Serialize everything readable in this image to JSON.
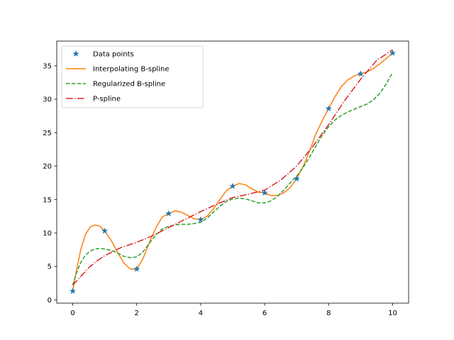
{
  "chart_data": {
    "type": "line",
    "title": "",
    "xlabel": "",
    "ylabel": "",
    "xlim": [
      -0.5,
      10.5
    ],
    "ylim": [
      -0.5,
      38.7
    ],
    "xticks": [
      0,
      2,
      4,
      6,
      8,
      10
    ],
    "xtick_labels": [
      "0",
      "2",
      "4",
      "6",
      "8",
      "10"
    ],
    "yticks": [
      0,
      5,
      10,
      15,
      20,
      25,
      30,
      35
    ],
    "ytick_labels": [
      "0",
      "5",
      "10",
      "15",
      "20",
      "25",
      "30",
      "35"
    ],
    "grid": false,
    "legend_position": "upper-left",
    "data_points": {
      "name": "Data points",
      "marker": "star",
      "color": "#1f77b4",
      "x": [
        0,
        1,
        2,
        3,
        4,
        5,
        6,
        7,
        8,
        9,
        10
      ],
      "y": [
        1.3,
        10.3,
        4.6,
        12.9,
        12.0,
        17.0,
        16.0,
        18.1,
        28.6,
        33.8,
        36.9
      ]
    },
    "series": [
      {
        "name": "Interpolating B-spline",
        "style": "solid",
        "color": "#ff7f0e",
        "x": [
          0,
          0.1,
          0.25,
          0.4,
          0.55,
          0.7,
          0.85,
          1.0,
          1.2,
          1.4,
          1.6,
          1.8,
          2.0,
          2.2,
          2.4,
          2.6,
          2.8,
          3.0,
          3.2,
          3.4,
          3.6,
          3.8,
          4.0,
          4.2,
          4.4,
          4.6,
          4.8,
          5.0,
          5.2,
          5.4,
          5.6,
          5.8,
          6.0,
          6.2,
          6.4,
          6.6,
          6.8,
          7.0,
          7.2,
          7.4,
          7.6,
          7.8,
          8.0,
          8.2,
          8.4,
          8.6,
          8.8,
          9.0,
          9.2,
          9.4,
          9.6,
          9.8,
          10.0
        ],
        "y": [
          1.3,
          4.0,
          7.5,
          9.8,
          10.9,
          11.2,
          11.0,
          10.3,
          8.9,
          7.1,
          5.5,
          4.6,
          4.6,
          6.2,
          8.6,
          10.8,
          12.4,
          12.9,
          13.3,
          13.1,
          12.6,
          12.1,
          12.0,
          12.5,
          13.6,
          15.0,
          16.3,
          17.0,
          17.4,
          17.2,
          16.6,
          16.1,
          16.0,
          15.6,
          15.6,
          16.0,
          16.8,
          18.1,
          19.9,
          22.2,
          24.8,
          26.8,
          28.6,
          30.4,
          31.9,
          32.9,
          33.5,
          33.8,
          34.1,
          34.6,
          35.3,
          36.1,
          36.9
        ]
      },
      {
        "name": "Regularized B-spline",
        "style": "dashed",
        "color": "#2ca02c",
        "x": [
          0,
          0.1,
          0.25,
          0.4,
          0.55,
          0.7,
          0.85,
          1.0,
          1.2,
          1.4,
          1.6,
          1.8,
          2.0,
          2.2,
          2.4,
          2.6,
          2.8,
          3.0,
          3.2,
          3.4,
          3.6,
          3.8,
          4.0,
          4.2,
          4.4,
          4.6,
          4.8,
          5.0,
          5.2,
          5.4,
          5.6,
          5.8,
          6.0,
          6.2,
          6.4,
          6.6,
          6.8,
          7.0,
          7.2,
          7.4,
          7.6,
          7.8,
          8.0,
          8.2,
          8.4,
          8.6,
          8.8,
          9.0,
          9.2,
          9.4,
          9.6,
          9.8,
          10.0
        ],
        "y": [
          2.2,
          3.8,
          5.6,
          6.7,
          7.3,
          7.6,
          7.7,
          7.6,
          7.4,
          7.0,
          6.5,
          6.3,
          6.4,
          7.2,
          8.5,
          9.7,
          10.6,
          11.0,
          11.2,
          11.3,
          11.3,
          11.4,
          11.6,
          12.2,
          13.1,
          14.0,
          14.7,
          15.1,
          15.2,
          15.1,
          14.8,
          14.5,
          14.5,
          14.8,
          15.5,
          16.4,
          17.5,
          18.5,
          19.8,
          21.3,
          23.0,
          24.6,
          25.9,
          26.9,
          27.6,
          28.1,
          28.5,
          28.9,
          29.3,
          29.9,
          30.9,
          32.3,
          34.0
        ]
      },
      {
        "name": "P-spline",
        "style": "dashdot",
        "color": "#d62728",
        "x": [
          0,
          0.25,
          0.5,
          0.75,
          1.0,
          1.5,
          2.0,
          2.5,
          3.0,
          3.5,
          4.0,
          4.5,
          5.0,
          5.5,
          6.0,
          6.5,
          7.0,
          7.5,
          8.0,
          8.5,
          9.0,
          9.5,
          10.0
        ],
        "y": [
          2.2,
          3.5,
          4.8,
          5.8,
          6.6,
          7.8,
          8.6,
          9.6,
          10.8,
          12.0,
          13.2,
          14.3,
          15.3,
          15.8,
          16.4,
          17.9,
          20.0,
          22.9,
          26.2,
          29.8,
          33.0,
          35.8,
          37.4
        ]
      }
    ]
  }
}
